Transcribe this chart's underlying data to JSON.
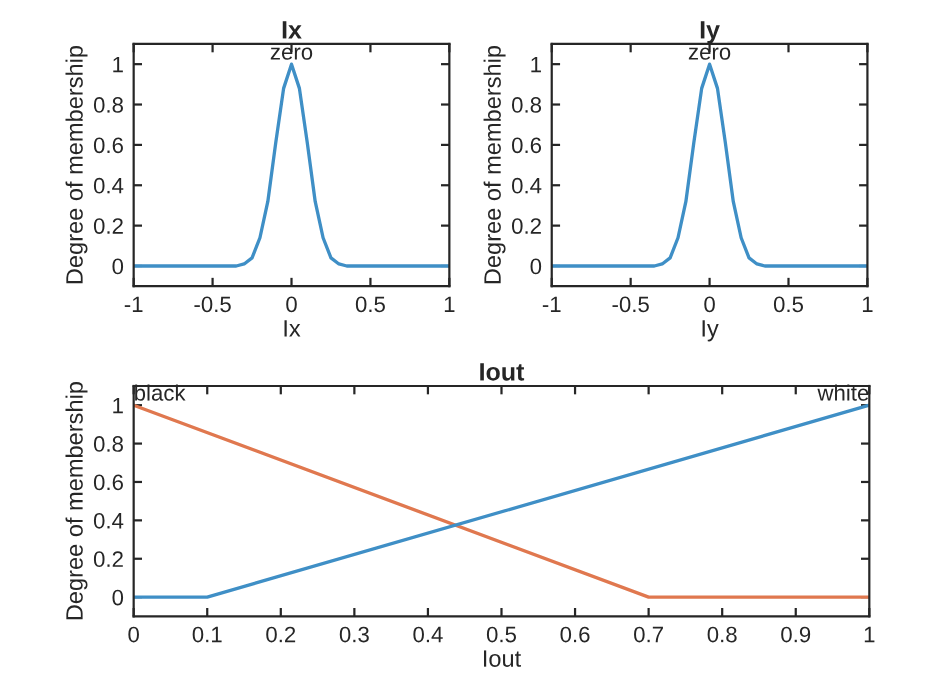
{
  "chart_data": [
    {
      "type": "line",
      "title": "Ix",
      "xlabel": "Ix",
      "ylabel": "Degree of membership",
      "xlim": [
        -1,
        1
      ],
      "ylim": [
        -0.1,
        1.1
      ],
      "xticks": [
        -1,
        -0.5,
        0,
        0.5,
        1
      ],
      "yticks": [
        0,
        0.2,
        0.4,
        0.6,
        0.8,
        1
      ],
      "grid": false,
      "legend": false,
      "series": [
        {
          "name": "zero",
          "color": "#3f8fc6",
          "x": [
            -1,
            -0.35,
            -0.3,
            -0.25,
            -0.2,
            -0.15,
            -0.1,
            -0.05,
            0,
            0.05,
            0.1,
            0.15,
            0.2,
            0.25,
            0.3,
            0.35,
            1
          ],
          "values": [
            0,
            0,
            0.01,
            0.04,
            0.14,
            0.32,
            0.61,
            0.88,
            1,
            0.88,
            0.61,
            0.32,
            0.14,
            0.04,
            0.01,
            0,
            0
          ]
        }
      ]
    },
    {
      "type": "line",
      "title": "Iy",
      "xlabel": "Iy",
      "ylabel": "Degree of membership",
      "xlim": [
        -1,
        1
      ],
      "ylim": [
        -0.1,
        1.1
      ],
      "xticks": [
        -1,
        -0.5,
        0,
        0.5,
        1
      ],
      "yticks": [
        0,
        0.2,
        0.4,
        0.6,
        0.8,
        1
      ],
      "grid": false,
      "legend": false,
      "series": [
        {
          "name": "zero",
          "color": "#3f8fc6",
          "x": [
            -1,
            -0.35,
            -0.3,
            -0.25,
            -0.2,
            -0.15,
            -0.1,
            -0.05,
            0,
            0.05,
            0.1,
            0.15,
            0.2,
            0.25,
            0.3,
            0.35,
            1
          ],
          "values": [
            0,
            0,
            0.01,
            0.04,
            0.14,
            0.32,
            0.61,
            0.88,
            1,
            0.88,
            0.61,
            0.32,
            0.14,
            0.04,
            0.01,
            0,
            0
          ]
        }
      ]
    },
    {
      "type": "line",
      "title": "Iout",
      "xlabel": "Iout",
      "ylabel": "Degree of membership",
      "xlim": [
        0,
        1
      ],
      "ylim": [
        -0.1,
        1.1
      ],
      "xticks": [
        0,
        0.1,
        0.2,
        0.3,
        0.4,
        0.5,
        0.6,
        0.7,
        0.8,
        0.9,
        1
      ],
      "yticks": [
        0,
        0.2,
        0.4,
        0.6,
        0.8,
        1
      ],
      "grid": false,
      "legend": false,
      "series": [
        {
          "name": "black",
          "color": "#e0784f",
          "x": [
            0,
            0.7,
            1
          ],
          "values": [
            1,
            0,
            0
          ]
        },
        {
          "name": "white",
          "color": "#3f8fc6",
          "x": [
            0,
            0.1,
            1
          ],
          "values": [
            0,
            0,
            1
          ]
        }
      ]
    }
  ]
}
